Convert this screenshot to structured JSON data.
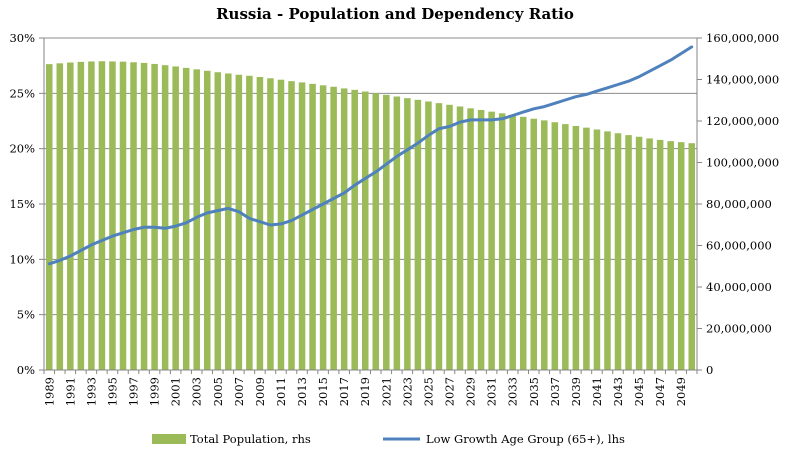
{
  "chart_data": {
    "type": "bar+line",
    "title": "Russia - Population and Dependency Ratio",
    "x": [
      1989,
      1990,
      1991,
      1992,
      1993,
      1994,
      1995,
      1996,
      1997,
      1998,
      1999,
      2000,
      2001,
      2002,
      2003,
      2004,
      2005,
      2006,
      2007,
      2008,
      2009,
      2010,
      2011,
      2012,
      2013,
      2014,
      2015,
      2016,
      2017,
      2018,
      2019,
      2020,
      2021,
      2022,
      2023,
      2024,
      2025,
      2026,
      2027,
      2028,
      2029,
      2030,
      2031,
      2032,
      2033,
      2034,
      2035,
      2036,
      2037,
      2038,
      2039,
      2040,
      2041,
      2042,
      2043,
      2044,
      2045,
      2046,
      2047,
      2048,
      2049,
      2050
    ],
    "x_tick_labels": [
      "1989",
      "1991",
      "1993",
      "1995",
      "1997",
      "1999",
      "2001",
      "2003",
      "2005",
      "2007",
      "2009",
      "2011",
      "2013",
      "2015",
      "2017",
      "2019",
      "2021",
      "2023",
      "2025",
      "2027",
      "2029",
      "2031",
      "2033",
      "2035",
      "2037",
      "2039",
      "2041",
      "2043",
      "2045",
      "2047",
      "2049"
    ],
    "left_axis": {
      "ticks": [
        0,
        0.05,
        0.1,
        0.15,
        0.2,
        0.25,
        0.3
      ],
      "tick_labels": [
        "0%",
        "5%",
        "10%",
        "15%",
        "20%",
        "25%",
        "30%"
      ],
      "ylim": [
        0,
        0.3
      ]
    },
    "right_axis": {
      "ticks": [
        0,
        20000000,
        40000000,
        60000000,
        80000000,
        100000000,
        120000000,
        140000000,
        160000000
      ],
      "tick_labels": [
        "0",
        "20,000,000",
        "40,000,000",
        "60,000,000",
        "80,000,000",
        "100,000,000",
        "120,000,000",
        "140,000,000",
        "160,000,000"
      ],
      "ylim": [
        0,
        160000000
      ]
    },
    "series": [
      {
        "name": "Total Population, rhs",
        "kind": "bar",
        "axis": "right",
        "color": "#9bbb59",
        "values": [
          147400000,
          147800000,
          148200000,
          148500000,
          148700000,
          148800000,
          148700000,
          148600000,
          148300000,
          148000000,
          147500000,
          146900000,
          146300000,
          145600000,
          144900000,
          144200000,
          143500000,
          142900000,
          142300000,
          141800000,
          141200000,
          140600000,
          139900000,
          139200000,
          138600000,
          137900000,
          137200000,
          136500000,
          135700000,
          135000000,
          134200000,
          133400000,
          132600000,
          131800000,
          131000000,
          130200000,
          129400000,
          128600000,
          127800000,
          127000000,
          126100000,
          125300000,
          124500000,
          123700000,
          122800000,
          122000000,
          121100000,
          120300000,
          119400000,
          118500000,
          117600000,
          116800000,
          115900000,
          115000000,
          114100000,
          113200000,
          112400000,
          111600000,
          110900000,
          110300000,
          109800000,
          109300000
        ]
      },
      {
        "name": "Low Growth Age Group (65+), lhs",
        "kind": "line",
        "axis": "left",
        "color": "#4f81bd",
        "values": [
          0.096,
          0.099,
          0.103,
          0.108,
          0.113,
          0.117,
          0.121,
          0.124,
          0.127,
          0.129,
          0.129,
          0.128,
          0.13,
          0.133,
          0.138,
          0.142,
          0.144,
          0.146,
          0.143,
          0.137,
          0.134,
          0.131,
          0.132,
          0.135,
          0.14,
          0.145,
          0.15,
          0.155,
          0.16,
          0.167,
          0.173,
          0.179,
          0.186,
          0.193,
          0.199,
          0.205,
          0.212,
          0.218,
          0.22,
          0.224,
          0.226,
          0.226,
          0.226,
          0.227,
          0.23,
          0.233,
          0.236,
          0.238,
          0.241,
          0.244,
          0.247,
          0.249,
          0.252,
          0.255,
          0.258,
          0.261,
          0.265,
          0.27,
          0.275,
          0.28,
          0.286,
          0.292
        ]
      }
    ],
    "legend": {
      "position": "bottom",
      "items": [
        "Total Population, rhs",
        "Low Growth Age Group (65+), lhs"
      ]
    },
    "grid": "horizontal"
  }
}
